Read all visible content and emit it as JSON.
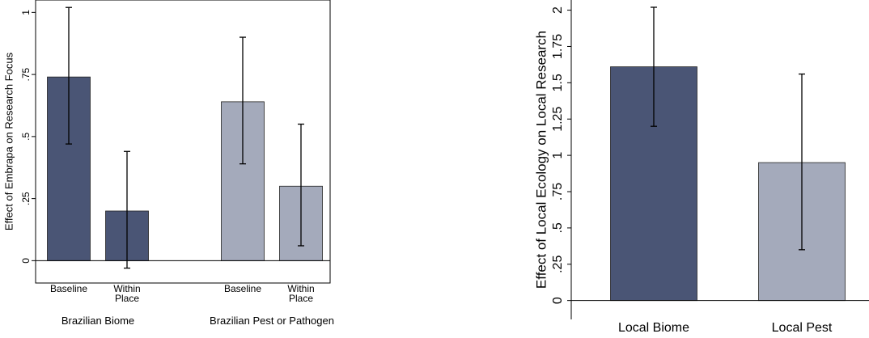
{
  "chart_data": [
    {
      "type": "bar",
      "ylabel": "Effect of Embrapa on Research Focus",
      "ylim": [
        -0.09,
        1.05
      ],
      "yticks": [
        0,
        {
          "value": 0.25,
          "label": ".25"
        },
        {
          "value": 0.5,
          "label": ".5"
        },
        {
          "value": 0.75,
          "label": ".75"
        },
        1
      ],
      "series": [
        {
          "name": "Brazilian Biome",
          "color": "#4a5575",
          "categories": [
            "Baseline",
            "Within Place"
          ],
          "values": [
            0.74,
            0.2
          ],
          "ci_low": [
            0.47,
            -0.03
          ],
          "ci_high": [
            1.02,
            0.44
          ]
        },
        {
          "name": "Brazilian Pest or Pathogen",
          "color": "#a4aabb",
          "categories": [
            "Baseline",
            "Within Place"
          ],
          "values": [
            0.64,
            0.3
          ],
          "ci_low": [
            0.39,
            0.06
          ],
          "ci_high": [
            0.9,
            0.55
          ]
        }
      ]
    },
    {
      "type": "bar",
      "ylabel": "Effect of Local Ecology on Local Research",
      "ylim": [
        -0.13,
        2.07
      ],
      "yticks": [
        0,
        {
          "value": 0.25,
          "label": ".25"
        },
        {
          "value": 0.5,
          "label": ".5"
        },
        {
          "value": 0.75,
          "label": ".75"
        },
        1,
        1.25,
        1.5,
        1.75,
        2
      ],
      "series": [
        {
          "colors": [
            "#4a5575",
            "#a4aabb"
          ],
          "categories": [
            "Local Biome",
            "Local Pest"
          ],
          "values": [
            1.61,
            0.95
          ],
          "ci_low": [
            1.2,
            0.35
          ],
          "ci_high": [
            2.02,
            1.56
          ]
        }
      ]
    }
  ]
}
